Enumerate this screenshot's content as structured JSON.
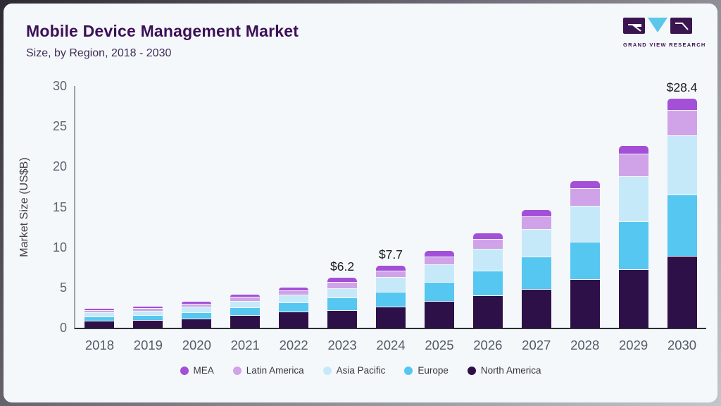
{
  "header": {
    "title": "Mobile Device Management Market",
    "subtitle": "Size, by Region, 2018 - 2030",
    "logo_text": "GRAND VIEW RESEARCH"
  },
  "colors": {
    "title": "#3d1056",
    "logo_purple": "#3b1550",
    "logo_blue": "#5cc6ea",
    "axis_line": "#2c2c34",
    "card_bg": "#f5f8fb"
  },
  "chart_data": {
    "type": "bar",
    "variant": "stacked",
    "title": "Mobile Device Management Market",
    "subtitle": "Size, by Region, 2018 - 2030",
    "ylabel": "Market Size (US$B)",
    "ylim": [
      0,
      30
    ],
    "yticks": [
      0,
      5,
      10,
      15,
      20,
      25,
      30
    ],
    "grid": false,
    "legend_position": "bottom",
    "categories": [
      "2018",
      "2019",
      "2020",
      "2021",
      "2022",
      "2023",
      "2024",
      "2025",
      "2026",
      "2027",
      "2028",
      "2029",
      "2030"
    ],
    "series": [
      {
        "name": "North America",
        "color": "#2e1048",
        "values": [
          0.85,
          0.95,
          1.15,
          1.55,
          2.0,
          2.2,
          2.65,
          3.3,
          4.0,
          4.85,
          6.0,
          7.3,
          8.95
        ]
      },
      {
        "name": "Europe",
        "color": "#55c7f0",
        "values": [
          0.55,
          0.6,
          0.75,
          0.95,
          1.15,
          1.55,
          1.85,
          2.35,
          3.05,
          3.95,
          4.7,
          5.9,
          7.55
        ]
      },
      {
        "name": "Asia Pacific",
        "color": "#c6e9f9",
        "values": [
          0.5,
          0.55,
          0.7,
          0.85,
          0.95,
          1.15,
          1.8,
          2.2,
          2.75,
          3.45,
          4.4,
          5.65,
          7.4
        ]
      },
      {
        "name": "Latin America",
        "color": "#d0a3e8",
        "values": [
          0.3,
          0.35,
          0.4,
          0.5,
          0.55,
          0.8,
          0.75,
          1.0,
          1.25,
          1.55,
          2.2,
          2.8,
          3.1
        ]
      },
      {
        "name": "MEA",
        "color": "#a44fd8",
        "values": [
          0.15,
          0.2,
          0.25,
          0.3,
          0.35,
          0.5,
          0.65,
          0.65,
          0.65,
          0.8,
          0.9,
          0.95,
          1.4
        ]
      }
    ],
    "annotations": [
      {
        "category": "2023",
        "text": "$6.2"
      },
      {
        "category": "2024",
        "text": "$7.7"
      },
      {
        "category": "2030",
        "text": "$28.4"
      }
    ],
    "legend": [
      "MEA",
      "Latin America",
      "Asia Pacific",
      "Europe",
      "North America"
    ],
    "totals": [
      2.35,
      2.65,
      3.25,
      4.15,
      5.0,
      6.2,
      7.7,
      9.5,
      11.7,
      14.6,
      18.2,
      22.6,
      28.4
    ]
  }
}
